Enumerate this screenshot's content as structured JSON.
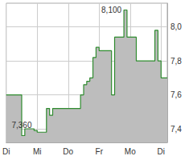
{
  "chart_data": {
    "type": "line",
    "categories": [
      "Di",
      null,
      null,
      null,
      null,
      null,
      null,
      null,
      null,
      null,
      "Mi",
      null,
      null,
      null,
      null,
      null,
      null,
      null,
      null,
      null,
      "Do",
      null,
      null,
      null,
      null,
      null,
      null,
      null,
      null,
      null,
      "Fr",
      null,
      null,
      null,
      null,
      null,
      null,
      null,
      null,
      null,
      "Mo",
      null,
      null,
      null,
      null,
      null,
      null,
      null,
      null,
      null,
      "Di",
      null,
      null
    ],
    "values": [
      7.6,
      7.6,
      7.6,
      7.6,
      7.6,
      7.36,
      7.4,
      7.4,
      7.4,
      7.39,
      7.38,
      7.38,
      7.38,
      7.52,
      7.48,
      7.52,
      7.52,
      7.52,
      7.52,
      7.52,
      7.52,
      7.52,
      7.52,
      7.52,
      7.6,
      7.66,
      7.68,
      7.7,
      7.82,
      7.88,
      7.86,
      7.86,
      7.86,
      7.86,
      7.6,
      7.94,
      7.94,
      7.94,
      8.1,
      7.94,
      7.94,
      7.94,
      7.8,
      7.8,
      7.8,
      7.8,
      7.8,
      7.8,
      7.98,
      7.8,
      7.7,
      7.7,
      7.7
    ],
    "color": "#2e8b2e",
    "ylim": [
      7.32,
      8.14
    ],
    "yticks": [
      {
        "value": 7.4,
        "label": "7,4"
      },
      {
        "value": 7.6,
        "label": "7,6"
      },
      {
        "value": 7.8,
        "label": "7,8"
      },
      {
        "value": 8.0,
        "label": "8,0"
      }
    ],
    "grid": true,
    "annotations": [
      {
        "text": "8,100",
        "x": 38,
        "y": 8.1
      },
      {
        "text": "7,360",
        "x": 5,
        "y": 7.36
      }
    ]
  }
}
